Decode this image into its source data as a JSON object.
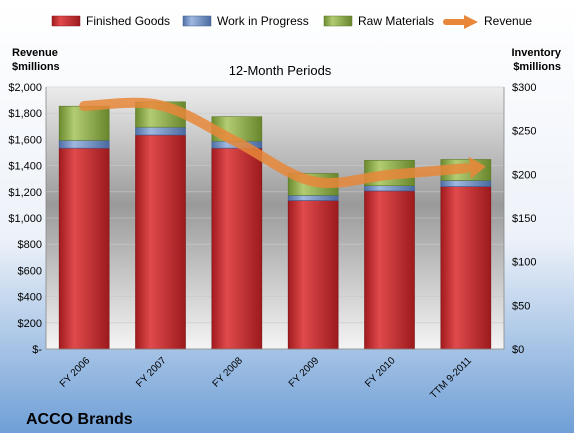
{
  "chart_data": {
    "type": "bar",
    "subtitle": "12-Month Periods",
    "company": "ACCO Brands",
    "categories": [
      "FY 2006",
      "FY 2007",
      "FY 2008",
      "FY 2009",
      "FY 2010",
      "TTM 9-2011"
    ],
    "legend_position": "top",
    "grid": true,
    "left_axis": {
      "label_line1": "Revenue",
      "label_line2": "$millions",
      "ylim": [
        0,
        2000
      ],
      "ticks": [
        {
          "value": 0,
          "label": "$-"
        },
        {
          "value": 200,
          "label": "$200"
        },
        {
          "value": 400,
          "label": "$400"
        },
        {
          "value": 600,
          "label": "$600"
        },
        {
          "value": 800,
          "label": "$800"
        },
        {
          "value": 1000,
          "label": "$1,000"
        },
        {
          "value": 1200,
          "label": "$1,200"
        },
        {
          "value": 1400,
          "label": "$1,400"
        },
        {
          "value": 1600,
          "label": "$1,600"
        },
        {
          "value": 1800,
          "label": "$1,800"
        },
        {
          "value": 2000,
          "label": "$2,000"
        }
      ]
    },
    "right_axis": {
      "label_line1": "Inventory",
      "label_line2": "$millions",
      "ylim": [
        0,
        300
      ],
      "ticks": [
        {
          "value": 0,
          "label": "$0"
        },
        {
          "value": 50,
          "label": "$50"
        },
        {
          "value": 100,
          "label": "$100"
        },
        {
          "value": 150,
          "label": "$150"
        },
        {
          "value": 200,
          "label": "$200"
        },
        {
          "value": 250,
          "label": "$250"
        },
        {
          "value": 300,
          "label": "$300"
        }
      ]
    },
    "series": [
      {
        "name": "Finished Goods",
        "axis": "right",
        "type": "stacked-bar",
        "color": "#cc2a2e",
        "values": [
          230,
          245,
          230,
          170,
          181,
          186
        ]
      },
      {
        "name": "Work in Progress",
        "axis": "right",
        "type": "stacked-bar",
        "color": "#6d8fc4",
        "values": [
          9,
          9,
          8,
          6,
          6,
          7
        ]
      },
      {
        "name": "Raw Materials",
        "axis": "right",
        "type": "stacked-bar",
        "color": "#8fae4c",
        "values": [
          39,
          29,
          28,
          25,
          29,
          24
        ]
      },
      {
        "name": "Revenue",
        "axis": "left",
        "type": "line",
        "color": "#e8873a",
        "values": [
          1855,
          1860,
          1580,
          1280,
          1330,
          1380
        ]
      }
    ]
  }
}
